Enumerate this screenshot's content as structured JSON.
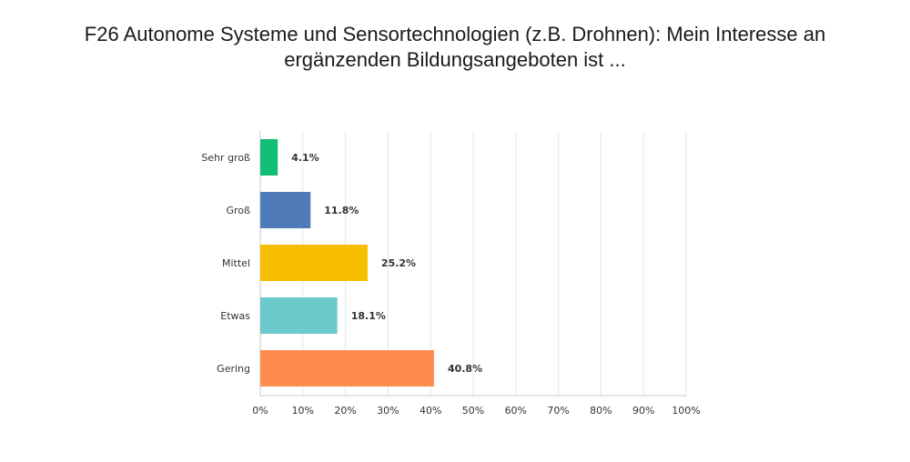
{
  "chart_data": {
    "type": "bar",
    "orientation": "horizontal",
    "title": "F26 Autonome Systeme und Sensortechnologien (z.B. Drohnen): Mein Interesse an ergänzenden Bildungsangeboten ist ...",
    "categories": [
      "Sehr groß",
      "Groß",
      "Mittel",
      "Etwas",
      "Gering"
    ],
    "values": [
      4.1,
      11.8,
      25.2,
      18.1,
      40.8
    ],
    "value_labels": [
      "4.1%",
      "11.8%",
      "25.2%",
      "18.1%",
      "40.8%"
    ],
    "colors": [
      "#12bf74",
      "#4f7bb8",
      "#f7bd00",
      "#6ccacc",
      "#ff8c4f"
    ],
    "xlim": [
      0,
      100
    ],
    "xticks": [
      0,
      10,
      20,
      30,
      40,
      50,
      60,
      70,
      80,
      90,
      100
    ],
    "xtick_labels": [
      "0%",
      "10%",
      "20%",
      "30%",
      "40%",
      "50%",
      "60%",
      "70%",
      "80%",
      "90%",
      "100%"
    ],
    "grid": true
  }
}
